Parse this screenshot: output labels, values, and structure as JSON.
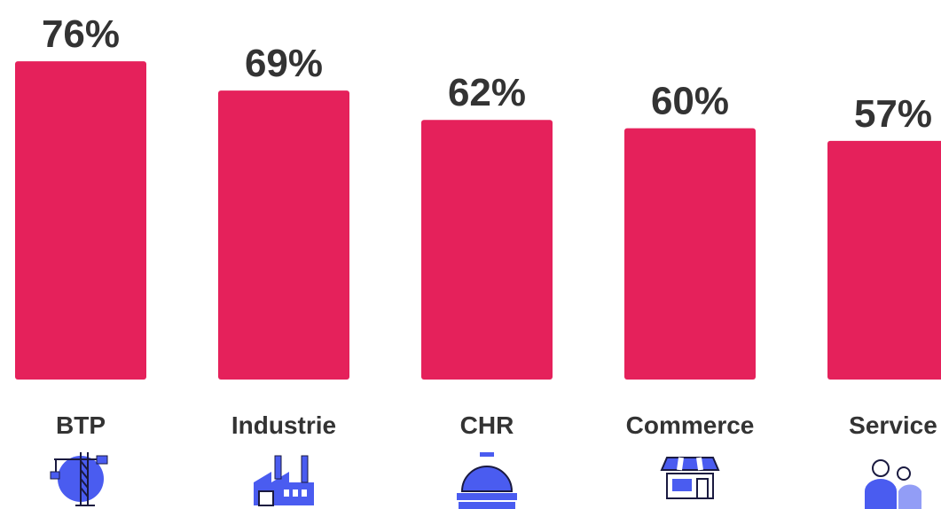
{
  "chart_data": {
    "type": "bar",
    "categories": [
      "BTP",
      "Industrie",
      "CHR",
      "Commerce",
      "Service"
    ],
    "values": [
      76,
      69,
      62,
      60,
      57
    ],
    "value_labels": [
      "76%",
      "69%",
      "62%",
      "60%",
      "57%"
    ],
    "color": "#e5215b",
    "ylim": [
      0,
      90
    ]
  }
}
